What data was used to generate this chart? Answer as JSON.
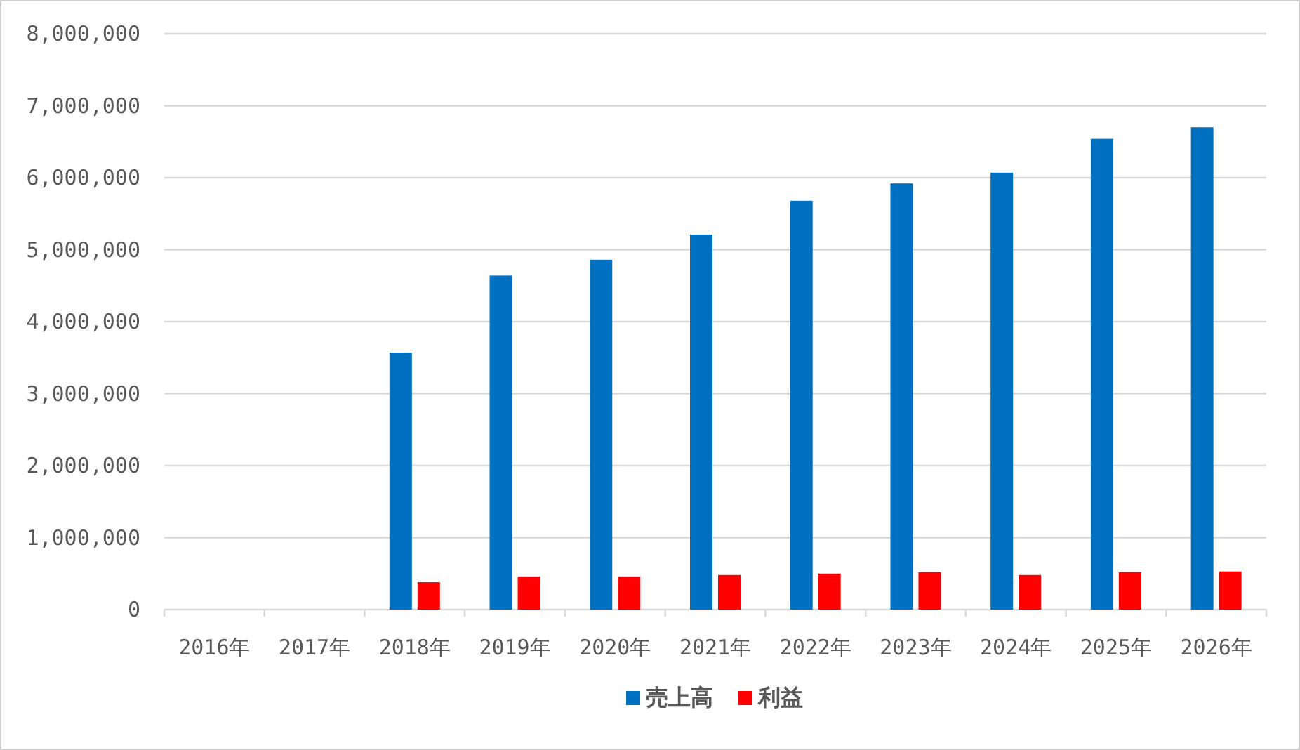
{
  "chart_data": {
    "type": "bar",
    "categories": [
      "2016年",
      "2017年",
      "2018年",
      "2019年",
      "2020年",
      "2021年",
      "2022年",
      "2023年",
      "2024年",
      "2025年",
      "2026年"
    ],
    "series": [
      {
        "name": "売上高",
        "color": "#0070c0",
        "values": [
          null,
          null,
          3570000,
          4640000,
          4860000,
          5210000,
          5680000,
          5920000,
          6070000,
          6540000,
          6700000
        ]
      },
      {
        "name": "利益",
        "color": "#ff0000",
        "values": [
          null,
          null,
          380000,
          460000,
          460000,
          480000,
          500000,
          520000,
          480000,
          520000,
          530000
        ]
      }
    ],
    "ylim": [
      0,
      8000000
    ],
    "yticks": [
      {
        "value": 0,
        "label": "0"
      },
      {
        "value": 1000000,
        "label": "1,000,000"
      },
      {
        "value": 2000000,
        "label": "2,000,000"
      },
      {
        "value": 3000000,
        "label": "3,000,000"
      },
      {
        "value": 4000000,
        "label": "4,000,000"
      },
      {
        "value": 5000000,
        "label": "5,000,000"
      },
      {
        "value": 6000000,
        "label": "6,000,000"
      },
      {
        "value": 7000000,
        "label": "7,000,000"
      },
      {
        "value": 8000000,
        "label": "8,000,000"
      }
    ],
    "grid": "y",
    "legend": "bottom"
  }
}
